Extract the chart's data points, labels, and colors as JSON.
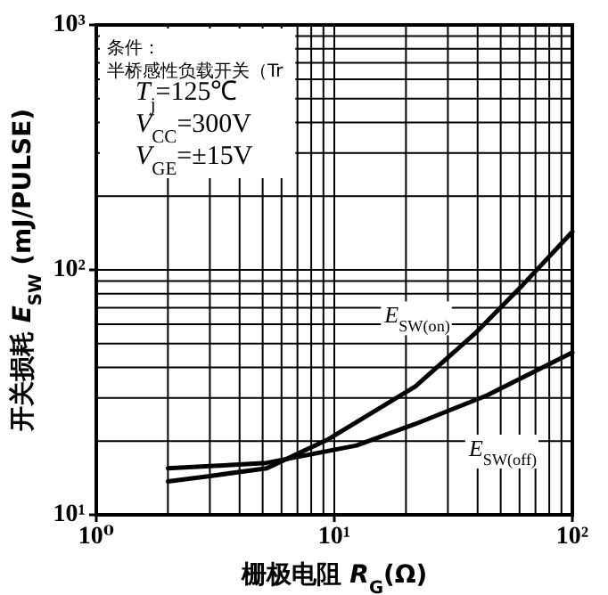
{
  "chart_data": {
    "type": "line",
    "xlabel": "栅极电阻 *R*$_{G}$(Ω)",
    "ylabel": "开关损耗 *E*$_{SW}$ (mJ/PULSE)",
    "log": "xy",
    "grid": true,
    "xlim": [
      1,
      100
    ],
    "ylim": [
      10,
      1000
    ],
    "xticks": [
      {
        "value": 1,
        "label": "10⁰"
      },
      {
        "value": 10,
        "label": "10¹"
      },
      {
        "value": 100,
        "label": "10²"
      }
    ],
    "yticks": [
      {
        "value": 10,
        "label": "10¹"
      },
      {
        "value": 100,
        "label": "10²"
      },
      {
        "value": 1000,
        "label": "10³"
      }
    ],
    "annotations": [
      "条件：",
      "半桥感性负载开关（Tr",
      "*T*$_{j}$=125℃",
      "*V*$_{CC}$=300V",
      "*V*$_{GE}$=±15V"
    ],
    "series": [
      {
        "name": "*E*$_{SW(on)}$",
        "color": "#000000",
        "x": [
          2,
          3,
          5.2,
          9.3,
          21.9,
          39,
          62,
          100
        ],
        "values": [
          13.7,
          14.4,
          15.5,
          20.2,
          33.4,
          55,
          87,
          143
        ]
      },
      {
        "name": "*E*$_{SW(off)}$",
        "color": "#000000",
        "x": [
          2,
          3,
          5.2,
          12.4,
          21.9,
          43.7,
          100
        ],
        "values": [
          15.5,
          15.8,
          16.3,
          19.2,
          23.5,
          30.7,
          46
        ]
      }
    ]
  }
}
